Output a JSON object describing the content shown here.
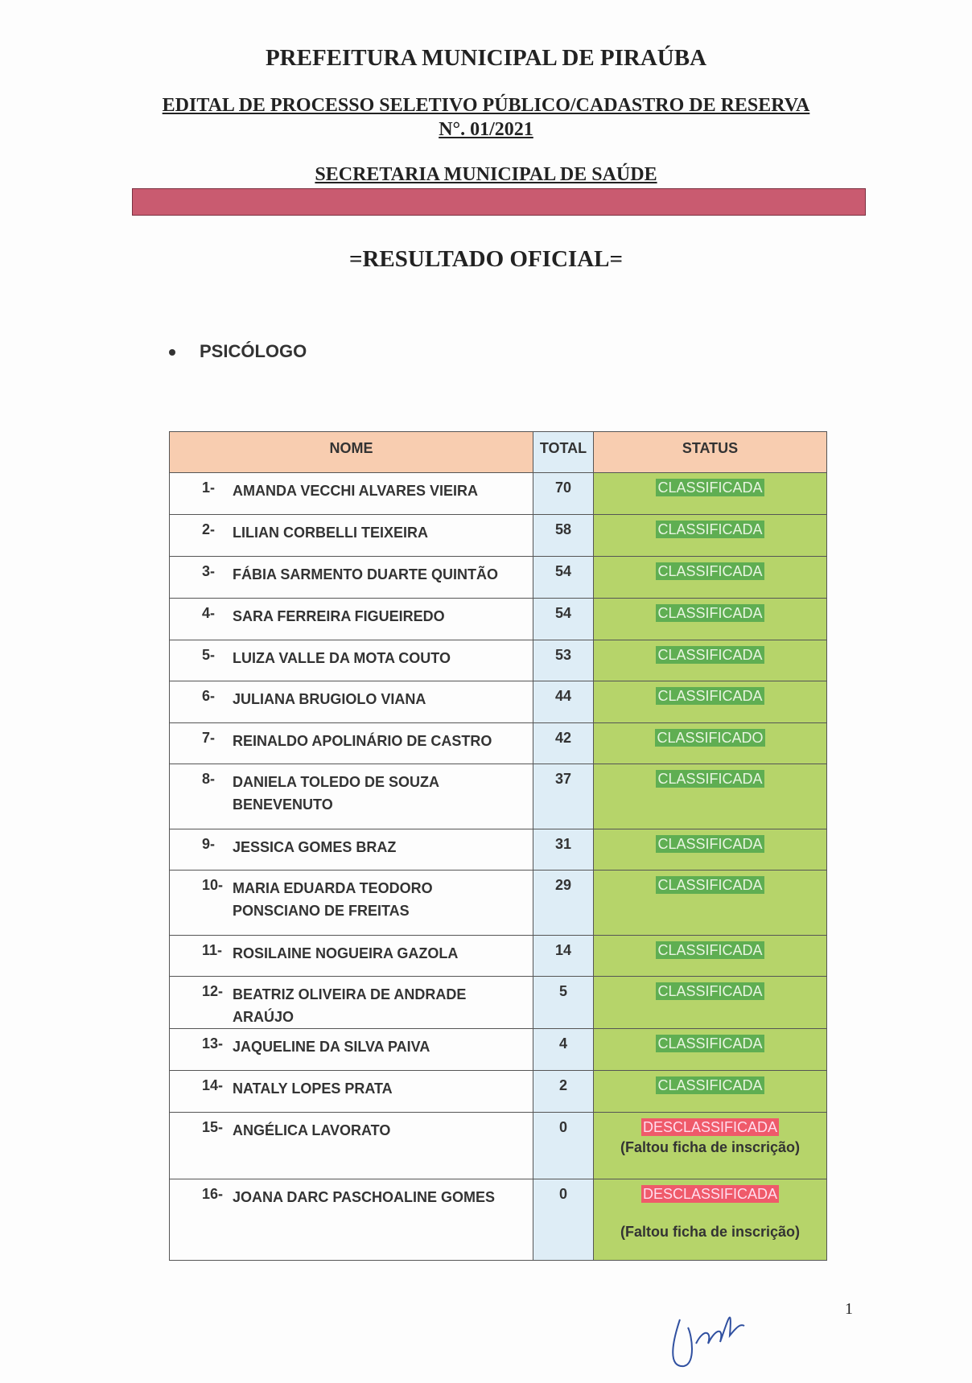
{
  "header": {
    "org": "PREFEITURA MUNICIPAL DE PIRAÚBA",
    "edital": "EDITAL DE PROCESSO SELETIVO PÚBLICO/CADASTRO DE RESERVA",
    "numero": "N°. 01/2021",
    "secretaria": "SECRETARIA MUNICIPAL DE SAÚDE",
    "resultado": "=RESULTADO OFICIAL="
  },
  "section": "PSICÓLOGO",
  "table": {
    "headers": [
      "NOME",
      "TOTAL",
      "STATUS"
    ],
    "rows": [
      {
        "n": "1-",
        "name": "AMANDA VECCHI ALVARES VIEIRA",
        "total": "70",
        "status": "CLASSIFICADA"
      },
      {
        "n": "2-",
        "name": "LILIAN CORBELLI TEIXEIRA",
        "total": "58",
        "status": "CLASSIFICADA"
      },
      {
        "n": "3-",
        "name": "FÁBIA SARMENTO DUARTE QUINTÃO",
        "total": "54",
        "status": "CLASSIFICADA"
      },
      {
        "n": "4-",
        "name": "SARA FERREIRA FIGUEIREDO",
        "total": "54",
        "status": "CLASSIFICADA"
      },
      {
        "n": "5-",
        "name": "LUIZA VALLE DA MOTA COUTO",
        "total": "53",
        "status": "CLASSIFICADA"
      },
      {
        "n": "6-",
        "name": "JULIANA BRUGIOLO VIANA",
        "total": "44",
        "status": "CLASSIFICADA"
      },
      {
        "n": "7-",
        "name": "REINALDO APOLINÁRIO DE CASTRO",
        "total": "42",
        "status": "CLASSIFICADO"
      },
      {
        "n": "8-",
        "name": "DANIELA TOLEDO DE SOUZA BENEVENUTO",
        "total": "37",
        "status": "CLASSIFICADA"
      },
      {
        "n": "9-",
        "name": "JESSICA GOMES BRAZ",
        "total": "31",
        "status": "CLASSIFICADA"
      },
      {
        "n": "10-",
        "name": "MARIA EDUARDA TEODORO PONSCIANO DE FREITAS",
        "total": "29",
        "status": "CLASSIFICADA"
      },
      {
        "n": "11-",
        "name": "ROSILAINE NOGUEIRA GAZOLA",
        "total": "14",
        "status": "CLASSIFICADA"
      },
      {
        "n": "12-",
        "name": "BEATRIZ OLIVEIRA DE ANDRADE ARAÚJO",
        "total": "5",
        "status": "CLASSIFICADA"
      },
      {
        "n": "13-",
        "name": "JAQUELINE DA SILVA PAIVA",
        "total": "4",
        "status": "CLASSIFICADA"
      },
      {
        "n": "14-",
        "name": "NATALY LOPES PRATA",
        "total": "2",
        "status": "CLASSIFICADA"
      },
      {
        "n": "15-",
        "name": "ANGÉLICA LAVORATO",
        "total": "0",
        "status": "DESCLASSIFICADA",
        "note": "(Faltou ficha de inscrição)"
      },
      {
        "n": "16-",
        "name": "JOANA DARC PASCHOALINE GOMES",
        "total": "0",
        "status": "DESCLASSIFICADA",
        "note": "(Faltou ficha de inscrição)"
      }
    ]
  },
  "colors": {
    "header": "#f8cdb0",
    "total_col": "#deedf6",
    "status_col": "#b6d46a",
    "classificada": "#5fae52",
    "desclassificada": "#ef5a6a",
    "bar": "#c95b70"
  },
  "page_number": "1"
}
